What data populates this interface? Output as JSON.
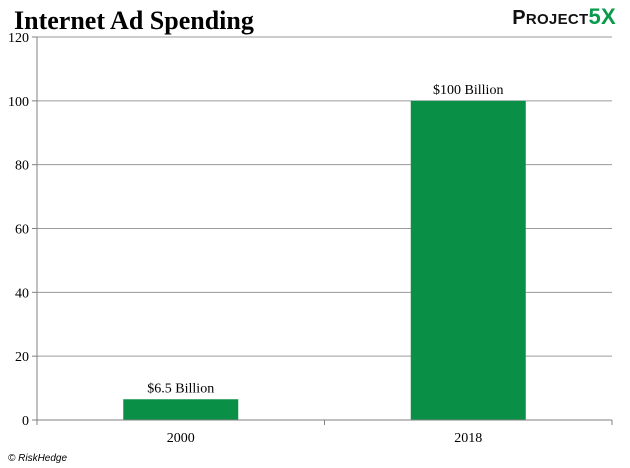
{
  "header": {
    "title": "Internet Ad Spending",
    "logo_text": "PROJECT",
    "logo_accent": "5X"
  },
  "footer": {
    "credit": "© RiskHedge"
  },
  "colors": {
    "bar": "#0a8f47",
    "grid": "#9a9a9a",
    "axis": "#808080",
    "logo_accent": "#0a9a4b"
  },
  "chart_data": {
    "type": "bar",
    "title": "Internet Ad Spending",
    "categories": [
      "2000",
      "2018"
    ],
    "values": [
      6.5,
      100
    ],
    "data_labels": [
      "$6.5 Billion",
      "$100 Billion"
    ],
    "xlabel": "",
    "ylabel": "",
    "ylim": [
      0,
      120
    ],
    "yticks": [
      0,
      20,
      40,
      60,
      80,
      100,
      120
    ],
    "grid": true,
    "legend": "none"
  }
}
